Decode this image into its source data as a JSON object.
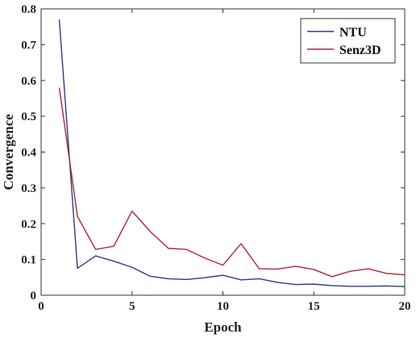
{
  "chart_data": {
    "type": "line",
    "xlabel": "Epoch",
    "ylabel": "Convergence",
    "xlim": [
      0,
      20
    ],
    "ylim": [
      0,
      0.8
    ],
    "xticks": [
      0,
      5,
      10,
      15,
      20
    ],
    "yticks": [
      0,
      0.1,
      0.2,
      0.3,
      0.4,
      0.5,
      0.6,
      0.7,
      0.8
    ],
    "xtick_labels": [
      "0",
      "5",
      "10",
      "15",
      "20"
    ],
    "ytick_labels": [
      "0",
      "0.1",
      "0.2",
      "0.3",
      "0.4",
      "0.5",
      "0.6",
      "0.7",
      "0.8"
    ],
    "grid": false,
    "legend_position": "top-right",
    "x": [
      1,
      2,
      3,
      4,
      5,
      6,
      7,
      8,
      9,
      10,
      11,
      12,
      13,
      14,
      15,
      16,
      17,
      18,
      19,
      20
    ],
    "series": [
      {
        "name": "NTU",
        "color": "#2b3f7f",
        "values": [
          0.77,
          0.075,
          0.11,
          0.095,
          0.078,
          0.053,
          0.046,
          0.044,
          0.049,
          0.056,
          0.043,
          0.046,
          0.036,
          0.03,
          0.031,
          0.027,
          0.025,
          0.025,
          0.026,
          0.024
        ]
      },
      {
        "name": "Senz3D",
        "color": "#b0263a",
        "values": [
          0.58,
          0.22,
          0.128,
          0.137,
          0.235,
          0.178,
          0.131,
          0.128,
          0.104,
          0.084,
          0.144,
          0.074,
          0.073,
          0.081,
          0.072,
          0.052,
          0.067,
          0.074,
          0.061,
          0.057
        ]
      }
    ]
  }
}
